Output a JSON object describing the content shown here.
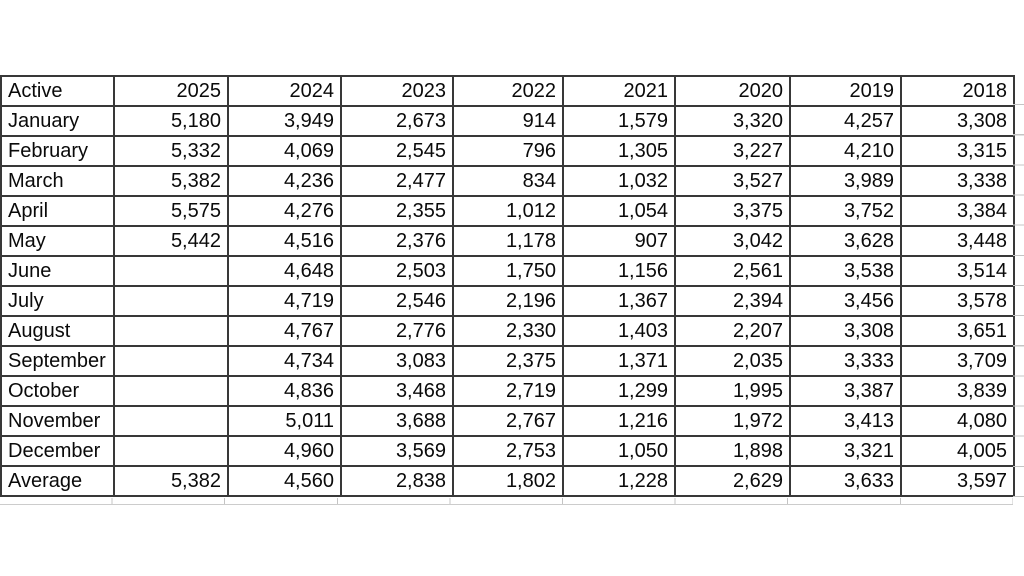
{
  "table": {
    "corner_label": "Active",
    "years": [
      "2025",
      "2024",
      "2023",
      "2022",
      "2021",
      "2020",
      "2019",
      "2018"
    ],
    "rows": [
      {
        "label": "January",
        "values": [
          "5,180",
          "3,949",
          "2,673",
          "914",
          "1,579",
          "3,320",
          "4,257",
          "3,308"
        ]
      },
      {
        "label": "February",
        "values": [
          "5,332",
          "4,069",
          "2,545",
          "796",
          "1,305",
          "3,227",
          "4,210",
          "3,315"
        ]
      },
      {
        "label": "March",
        "values": [
          "5,382",
          "4,236",
          "2,477",
          "834",
          "1,032",
          "3,527",
          "3,989",
          "3,338"
        ]
      },
      {
        "label": "April",
        "values": [
          "5,575",
          "4,276",
          "2,355",
          "1,012",
          "1,054",
          "3,375",
          "3,752",
          "3,384"
        ]
      },
      {
        "label": "May",
        "values": [
          "5,442",
          "4,516",
          "2,376",
          "1,178",
          "907",
          "3,042",
          "3,628",
          "3,448"
        ]
      },
      {
        "label": "June",
        "values": [
          "",
          "4,648",
          "2,503",
          "1,750",
          "1,156",
          "2,561",
          "3,538",
          "3,514"
        ]
      },
      {
        "label": "July",
        "values": [
          "",
          "4,719",
          "2,546",
          "2,196",
          "1,367",
          "2,394",
          "3,456",
          "3,578"
        ]
      },
      {
        "label": "August",
        "values": [
          "",
          "4,767",
          "2,776",
          "2,330",
          "1,403",
          "2,207",
          "3,308",
          "3,651"
        ]
      },
      {
        "label": "September",
        "values": [
          "",
          "4,734",
          "3,083",
          "2,375",
          "1,371",
          "2,035",
          "3,333",
          "3,709"
        ]
      },
      {
        "label": "October",
        "values": [
          "",
          "4,836",
          "3,468",
          "2,719",
          "1,299",
          "1,995",
          "3,387",
          "3,839"
        ]
      },
      {
        "label": "November",
        "values": [
          "",
          "5,011",
          "3,688",
          "2,767",
          "1,216",
          "1,972",
          "3,413",
          "4,080"
        ]
      },
      {
        "label": "December",
        "values": [
          "",
          "4,960",
          "3,569",
          "2,753",
          "1,050",
          "1,898",
          "3,321",
          "4,005"
        ]
      }
    ],
    "summary": {
      "label": "Average",
      "values": [
        "5,382",
        "4,560",
        "2,838",
        "1,802",
        "1,228",
        "2,629",
        "3,633",
        "3,597"
      ]
    }
  },
  "colors": {
    "background": "#ffffff",
    "grid_border": "#383838",
    "grid_light": "#c4c4c4",
    "text": "#0a0a0a",
    "corner_text": "#3a3a3a"
  }
}
